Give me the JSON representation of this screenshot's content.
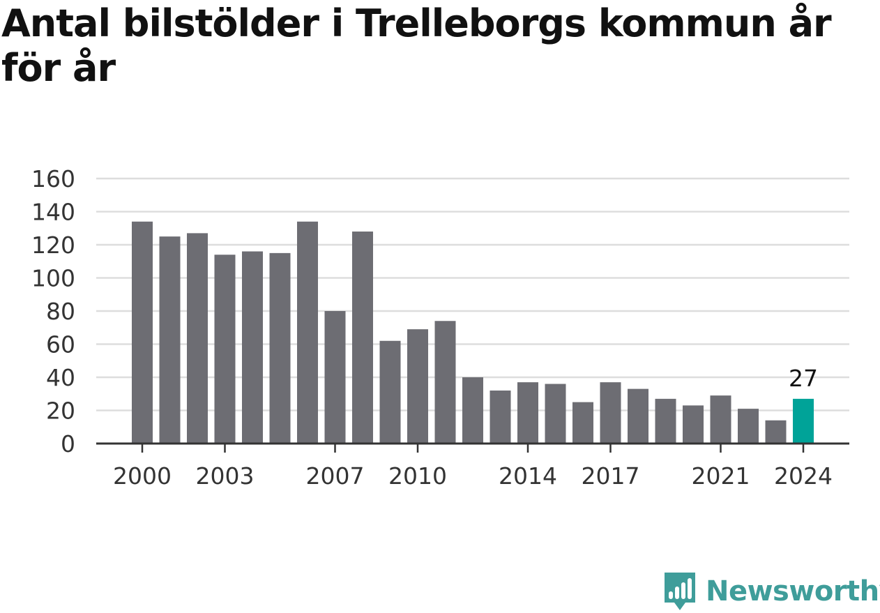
{
  "title": "Antal bilstölder i Trelleborgs kommun år för år",
  "brand": {
    "name": "Newsworthy",
    "color": "#3f9d9a"
  },
  "chart_data": {
    "type": "bar",
    "title": "Antal bilstölder i Trelleborgs kommun år för år",
    "xlabel": "",
    "ylabel": "",
    "categories": [
      2000,
      2001,
      2002,
      2003,
      2004,
      2005,
      2006,
      2007,
      2008,
      2009,
      2010,
      2011,
      2012,
      2013,
      2014,
      2015,
      2016,
      2017,
      2018,
      2019,
      2020,
      2021,
      2022,
      2023,
      2024
    ],
    "values": [
      134,
      125,
      127,
      114,
      116,
      115,
      134,
      80,
      128,
      62,
      69,
      74,
      40,
      32,
      37,
      36,
      25,
      37,
      33,
      27,
      23,
      29,
      21,
      14,
      27
    ],
    "x_tick_labels": [
      "2000",
      "2003",
      "2007",
      "2010",
      "2014",
      "2017",
      "2021",
      "2024"
    ],
    "y_ticks": [
      0,
      20,
      40,
      60,
      80,
      100,
      120,
      140,
      160
    ],
    "ylim": [
      0,
      160
    ],
    "grid": true,
    "legend": "none",
    "highlight": {
      "category": 2024,
      "label": "27"
    },
    "colors": {
      "bar": "#6d6d73",
      "highlight": "#00a398",
      "grid": "#dddddd",
      "axis": "#333333"
    }
  }
}
